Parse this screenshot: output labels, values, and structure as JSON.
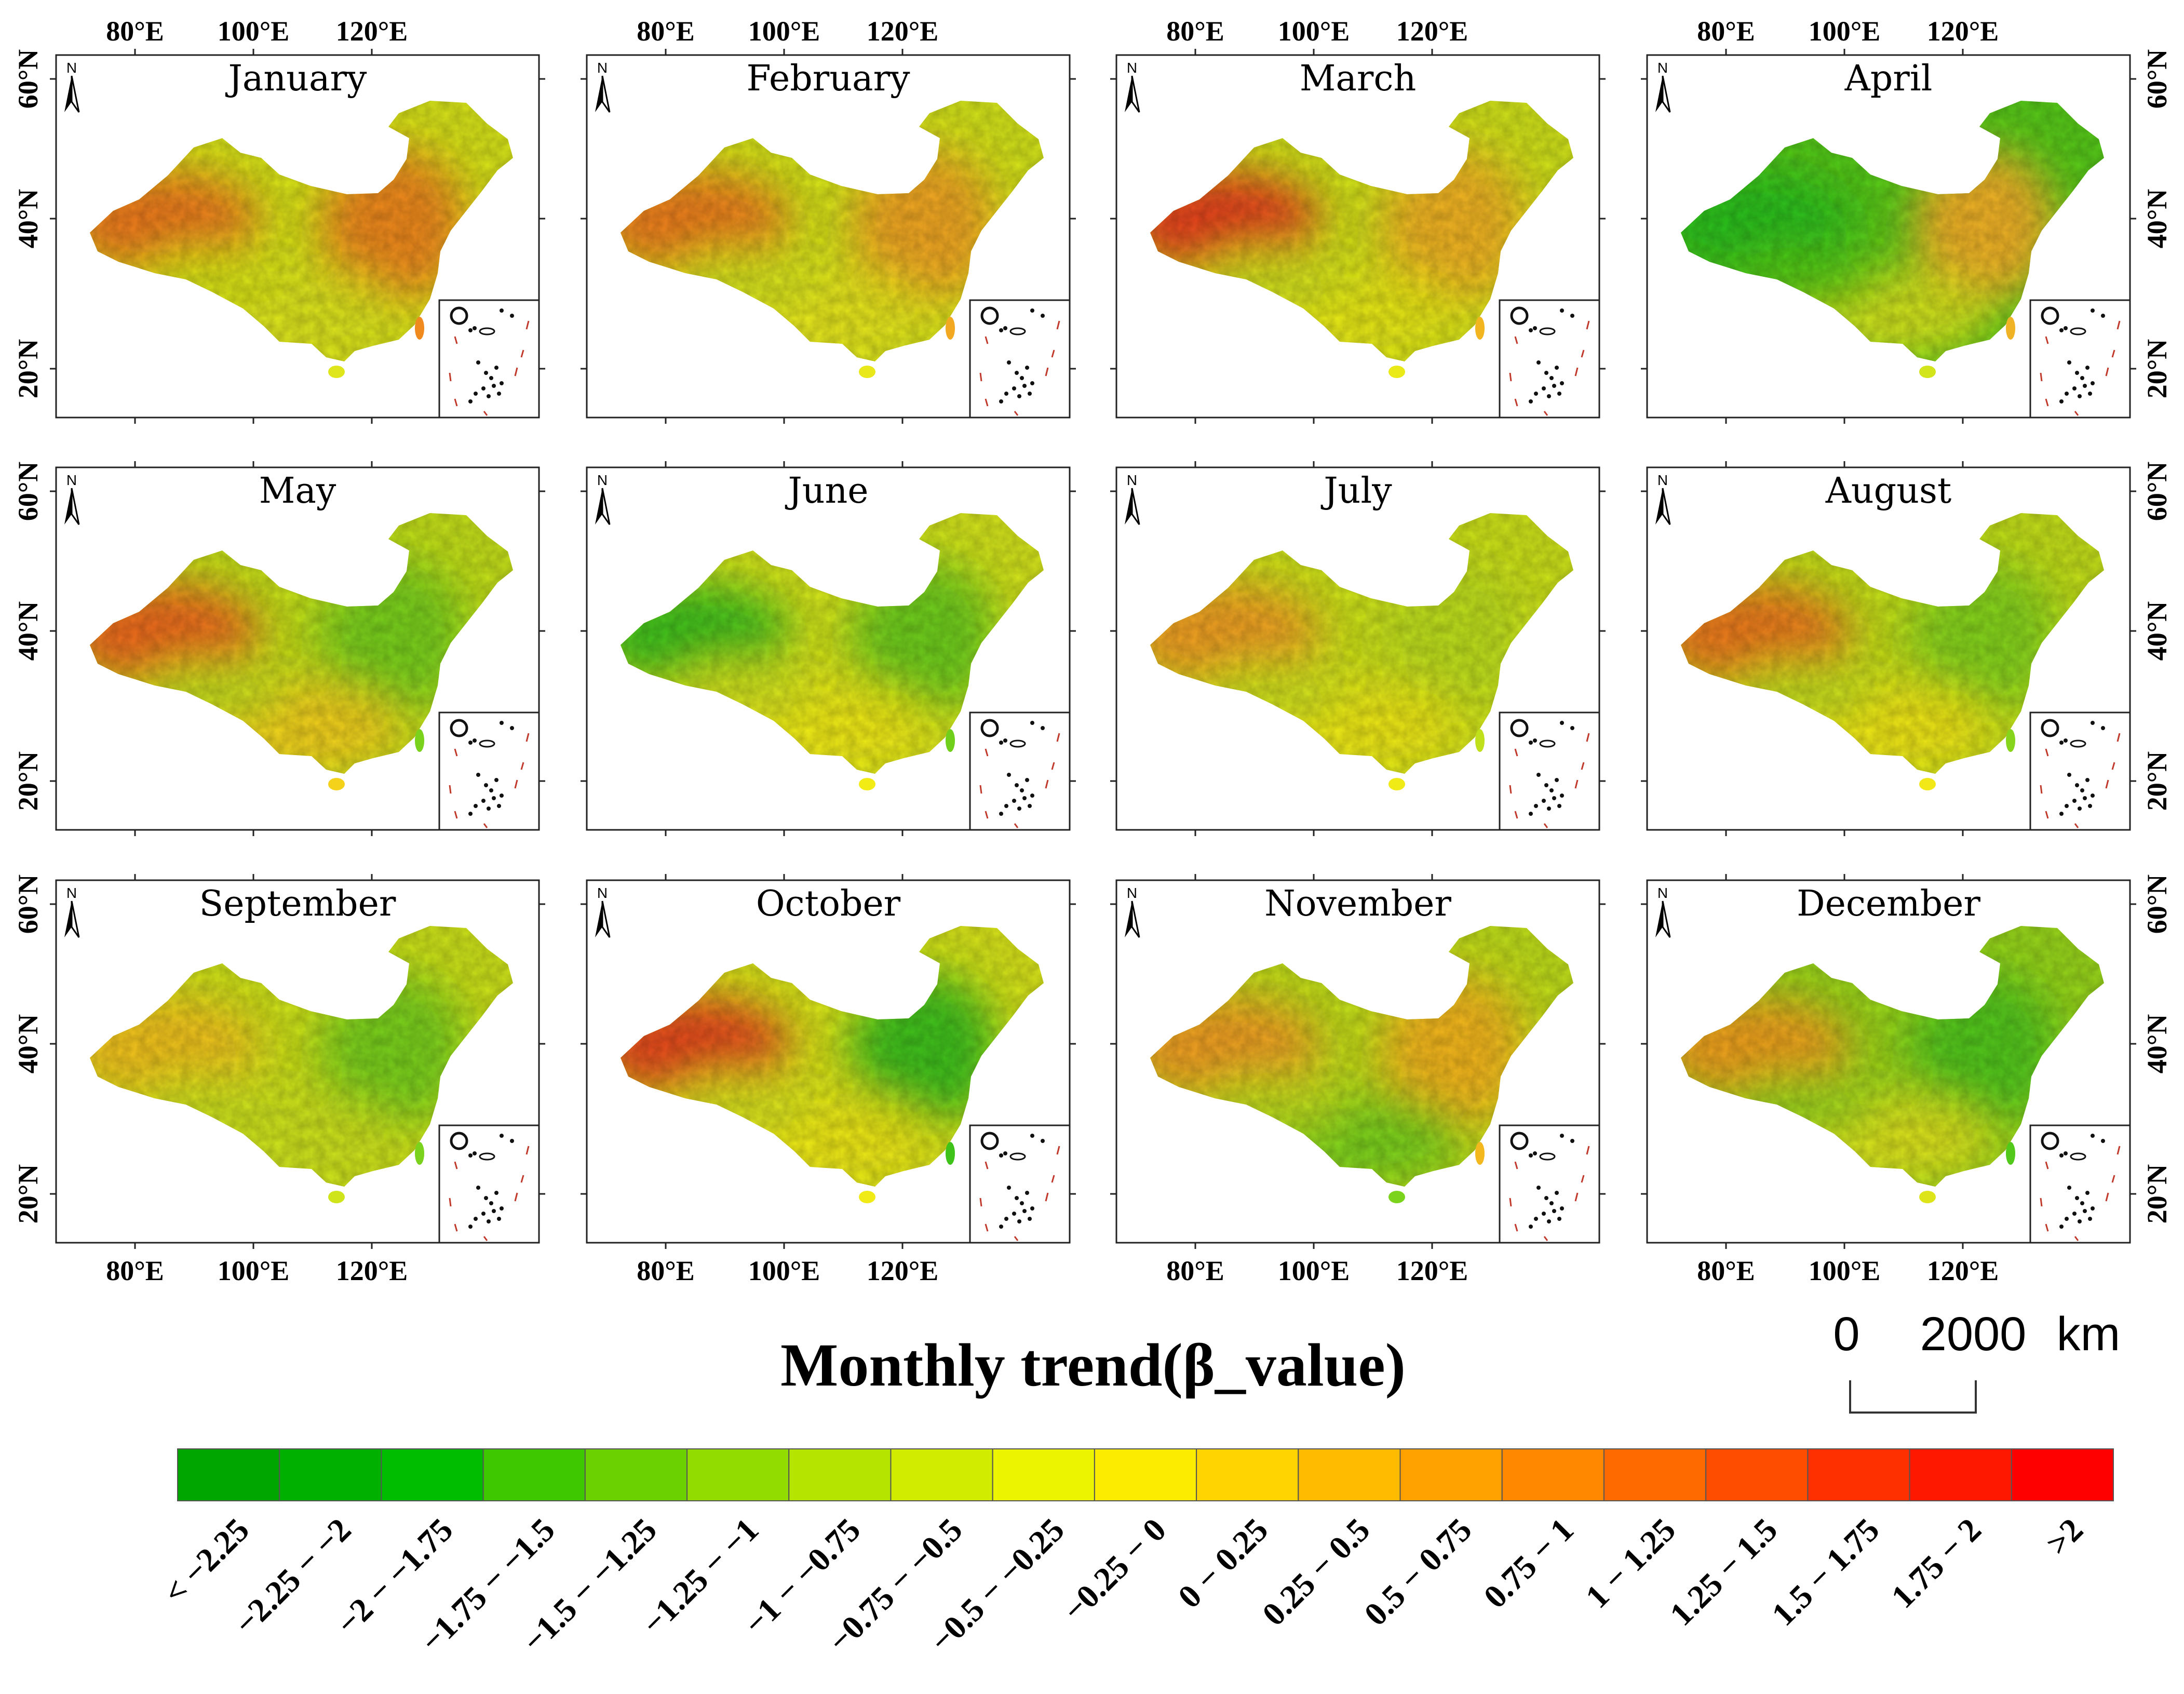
{
  "figure": {
    "months": [
      "January",
      "February",
      "March",
      "April",
      "May",
      "June",
      "July",
      "August",
      "September",
      "October",
      "November",
      "December"
    ],
    "lon_ticks": [
      "80°E",
      "100°E",
      "120°E"
    ],
    "lat_ticks": [
      "60°N",
      "40°N",
      "20°N"
    ],
    "north_arrow_label": "N",
    "panel_tints": [
      {
        "west": "#f07a1a",
        "center": "#d9e619",
        "east": "#f08a1e",
        "south": "#dfe61c"
      },
      {
        "west": "#f07f1c",
        "center": "#d6e61a",
        "east": "#f2a820",
        "south": "#e8e81a"
      },
      {
        "west": "#e8421a",
        "center": "#d2e41a",
        "east": "#f2b520",
        "south": "#e9ea18"
      },
      {
        "west": "#2cc21a",
        "center": "#57cc19",
        "east": "#f0b326",
        "south": "#d2e41a"
      },
      {
        "west": "#f06a1a",
        "center": "#c6e21a",
        "east": "#7ad21c",
        "south": "#f4d21c"
      },
      {
        "west": "#3fc41a",
        "center": "#d6e61c",
        "east": "#6fcf1b",
        "south": "#f2ec14"
      },
      {
        "west": "#f3a020",
        "center": "#cfe41a",
        "east": "#bfe01a",
        "south": "#f0ea16"
      },
      {
        "west": "#ef7a1c",
        "center": "#c5e11a",
        "east": "#86d51c",
        "south": "#f2e818"
      },
      {
        "west": "#f4c41c",
        "center": "#cfe41a",
        "east": "#7ad21c",
        "south": "#cfe41a"
      },
      {
        "west": "#e8481a",
        "center": "#d9e61a",
        "east": "#3fc21a",
        "south": "#f0ea16"
      },
      {
        "west": "#f3a020",
        "center": "#c2e01a",
        "east": "#f4b81f",
        "south": "#7cd31c"
      },
      {
        "west": "#f2a21e",
        "center": "#9ad81b",
        "east": "#52c91a",
        "south": "#dde51a"
      }
    ]
  },
  "legend": {
    "title": "Monthly trend(β_value)",
    "classes": [
      {
        "label": "< −2.25",
        "color": "#00a600"
      },
      {
        "label": "−2.25 − −2",
        "color": "#00b000"
      },
      {
        "label": "−2 − −1.75",
        "color": "#00bd00"
      },
      {
        "label": "−1.75 − −1.5",
        "color": "#3ec800"
      },
      {
        "label": "−1.5 − −1.25",
        "color": "#6cd100"
      },
      {
        "label": "−1.25 − −1",
        "color": "#92dc00"
      },
      {
        "label": "−1 − −0.75",
        "color": "#b4e400"
      },
      {
        "label": "−0.75 − −0.5",
        "color": "#d2ec00"
      },
      {
        "label": "−0.5 − −0.25",
        "color": "#ecf400"
      },
      {
        "label": "−0.25 − 0",
        "color": "#fbec00"
      },
      {
        "label": "0 − 0.25",
        "color": "#ffd400"
      },
      {
        "label": "0.25 − 0.5",
        "color": "#ffbb00"
      },
      {
        "label": "0.5 − 0.75",
        "color": "#ffa200"
      },
      {
        "label": "0.75 − 1",
        "color": "#ff8800"
      },
      {
        "label": "1 − 1.25",
        "color": "#ff6a00"
      },
      {
        "label": "1.25 − 1.5",
        "color": "#ff4d00"
      },
      {
        "label": "1.5 − 1.75",
        "color": "#ff3000"
      },
      {
        "label": "1.75 − 2",
        "color": "#ff1800"
      },
      {
        "label": ">2",
        "color": "#ff0000"
      }
    ]
  },
  "scale_bar": {
    "start": "0",
    "end": "2000",
    "unit": "km"
  }
}
